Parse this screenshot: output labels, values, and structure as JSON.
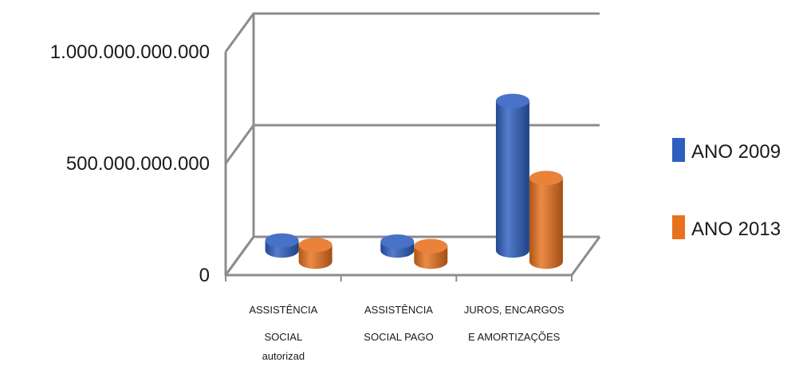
{
  "chart_data": {
    "type": "bar",
    "three_d": true,
    "bar_shape": "cylinder",
    "categories": [
      [
        "ASSISTÊNCIA",
        "SOCIAL",
        "autorizad"
      ],
      [
        "ASSISTÊNCIA",
        "SOCIAL PAGO"
      ],
      [
        "JUROS, ENCARGOS",
        "E AMORTIZAÇÕES"
      ]
    ],
    "series": [
      {
        "name": "ANO 2009",
        "color": "#2e5fbf",
        "values": [
          45000000000,
          40000000000,
          670000000000
        ]
      },
      {
        "name": "ANO 2013",
        "color": "#e8711e",
        "values": [
          75000000000,
          70000000000,
          375000000000
        ]
      }
    ],
    "y_ticks": [
      {
        "value": 0,
        "label": "0"
      },
      {
        "value": 500000000000,
        "label": "500.000.000.000"
      },
      {
        "value": 1000000000000,
        "label": "1.000.000.000.000"
      }
    ],
    "ylim": [
      0,
      1000000000000
    ],
    "grid": true,
    "legend_position": "right",
    "title": "",
    "xlabel": "",
    "ylabel": ""
  }
}
